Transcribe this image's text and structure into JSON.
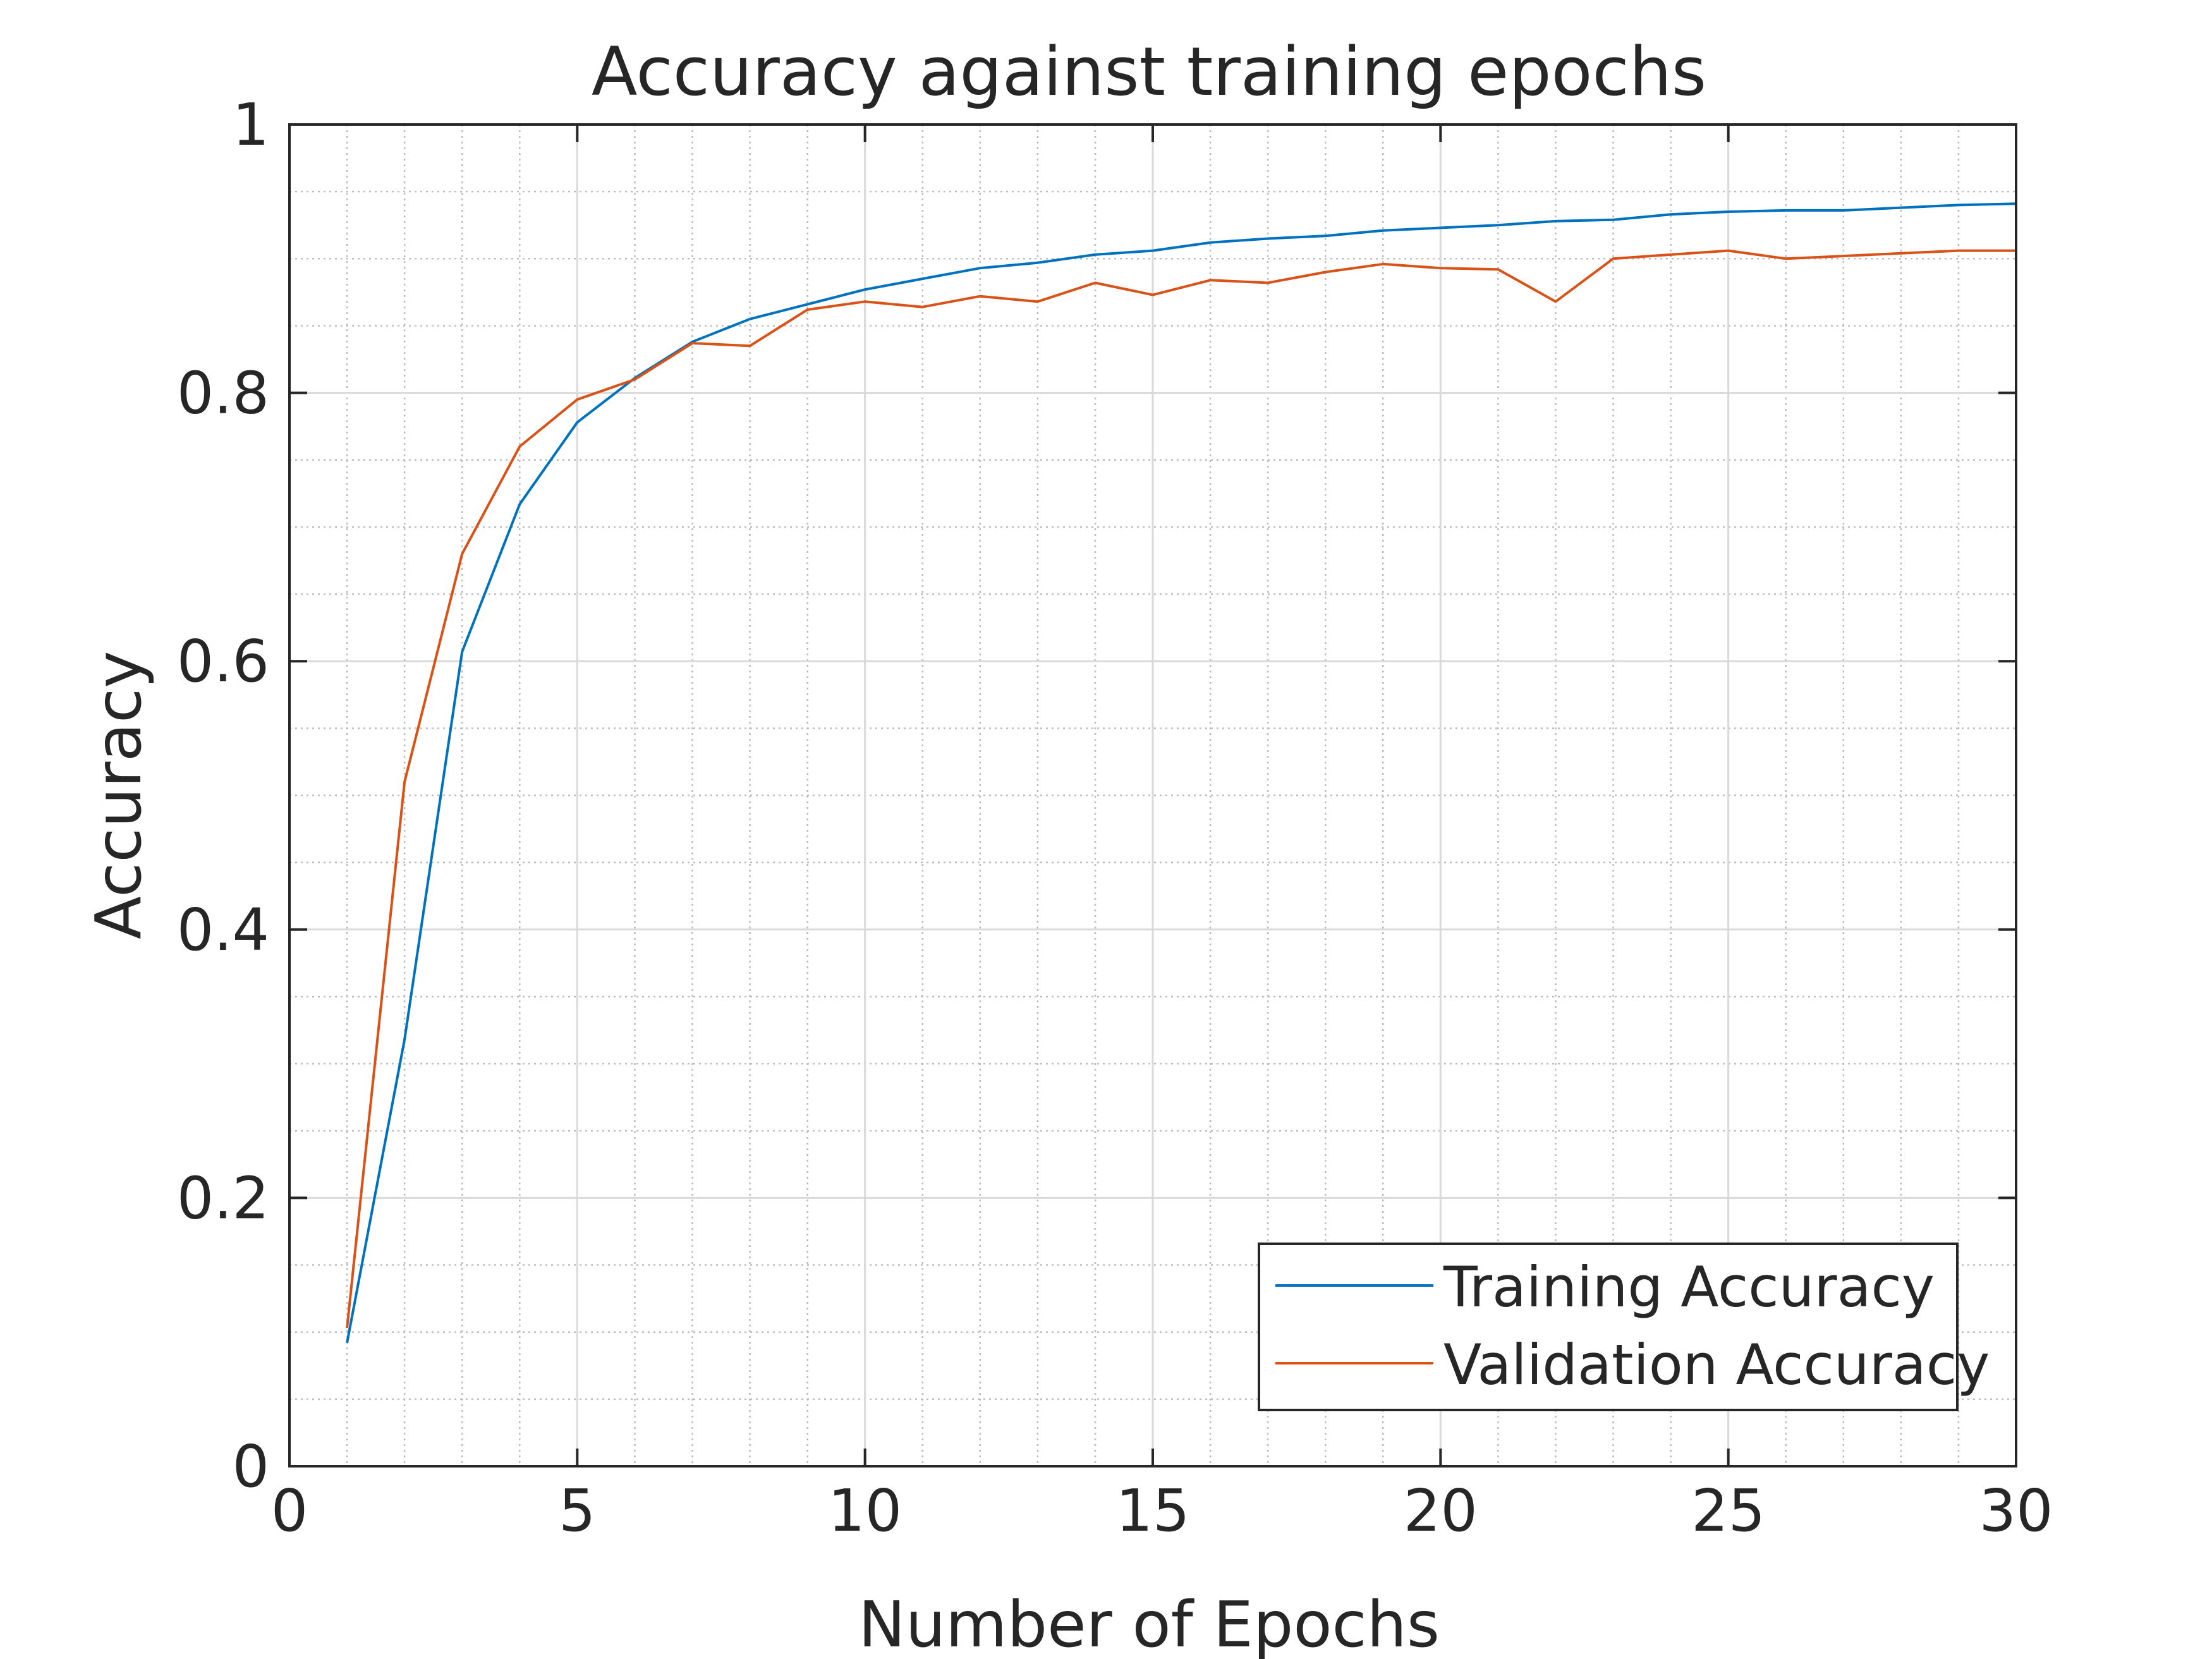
{
  "chart_data": {
    "type": "line",
    "title": "Accuracy against training epochs",
    "xlabel": "Number of Epochs",
    "ylabel": "Accuracy",
    "xlim": [
      0,
      30
    ],
    "ylim": [
      0,
      1
    ],
    "xticks": [
      0,
      5,
      10,
      15,
      20,
      25,
      30
    ],
    "xtick_labels": [
      "0",
      "5",
      "10",
      "15",
      "20",
      "25",
      "30"
    ],
    "yticks": [
      0,
      0.2,
      0.4,
      0.6,
      0.8,
      1
    ],
    "ytick_labels": [
      "0",
      "0.2",
      "0.4",
      "0.6",
      "0.8",
      "1"
    ],
    "grid": true,
    "minor_grid": true,
    "legend_position": "bottom-right",
    "x": [
      1,
      2,
      3,
      4,
      5,
      6,
      7,
      8,
      9,
      10,
      11,
      12,
      13,
      14,
      15,
      16,
      17,
      18,
      19,
      20,
      21,
      22,
      23,
      24,
      25,
      26,
      27,
      28,
      29,
      30
    ],
    "series": [
      {
        "name": "Training Accuracy",
        "color": "#0072BD",
        "values": [
          0.092,
          0.318,
          0.607,
          0.717,
          0.778,
          0.811,
          0.838,
          0.855,
          0.866,
          0.877,
          0.885,
          0.893,
          0.897,
          0.903,
          0.906,
          0.912,
          0.915,
          0.917,
          0.921,
          0.923,
          0.925,
          0.928,
          0.929,
          0.933,
          0.935,
          0.936,
          0.936,
          0.938,
          0.94,
          0.941
        ]
      },
      {
        "name": "Validation Accuracy",
        "color": "#D95319",
        "values": [
          0.103,
          0.51,
          0.68,
          0.76,
          0.795,
          0.81,
          0.837,
          0.835,
          0.862,
          0.868,
          0.864,
          0.872,
          0.868,
          0.882,
          0.873,
          0.884,
          0.882,
          0.89,
          0.896,
          0.893,
          0.892,
          0.868,
          0.9,
          0.903,
          0.906,
          0.9,
          0.902,
          0.904,
          0.906,
          0.906
        ]
      }
    ]
  }
}
